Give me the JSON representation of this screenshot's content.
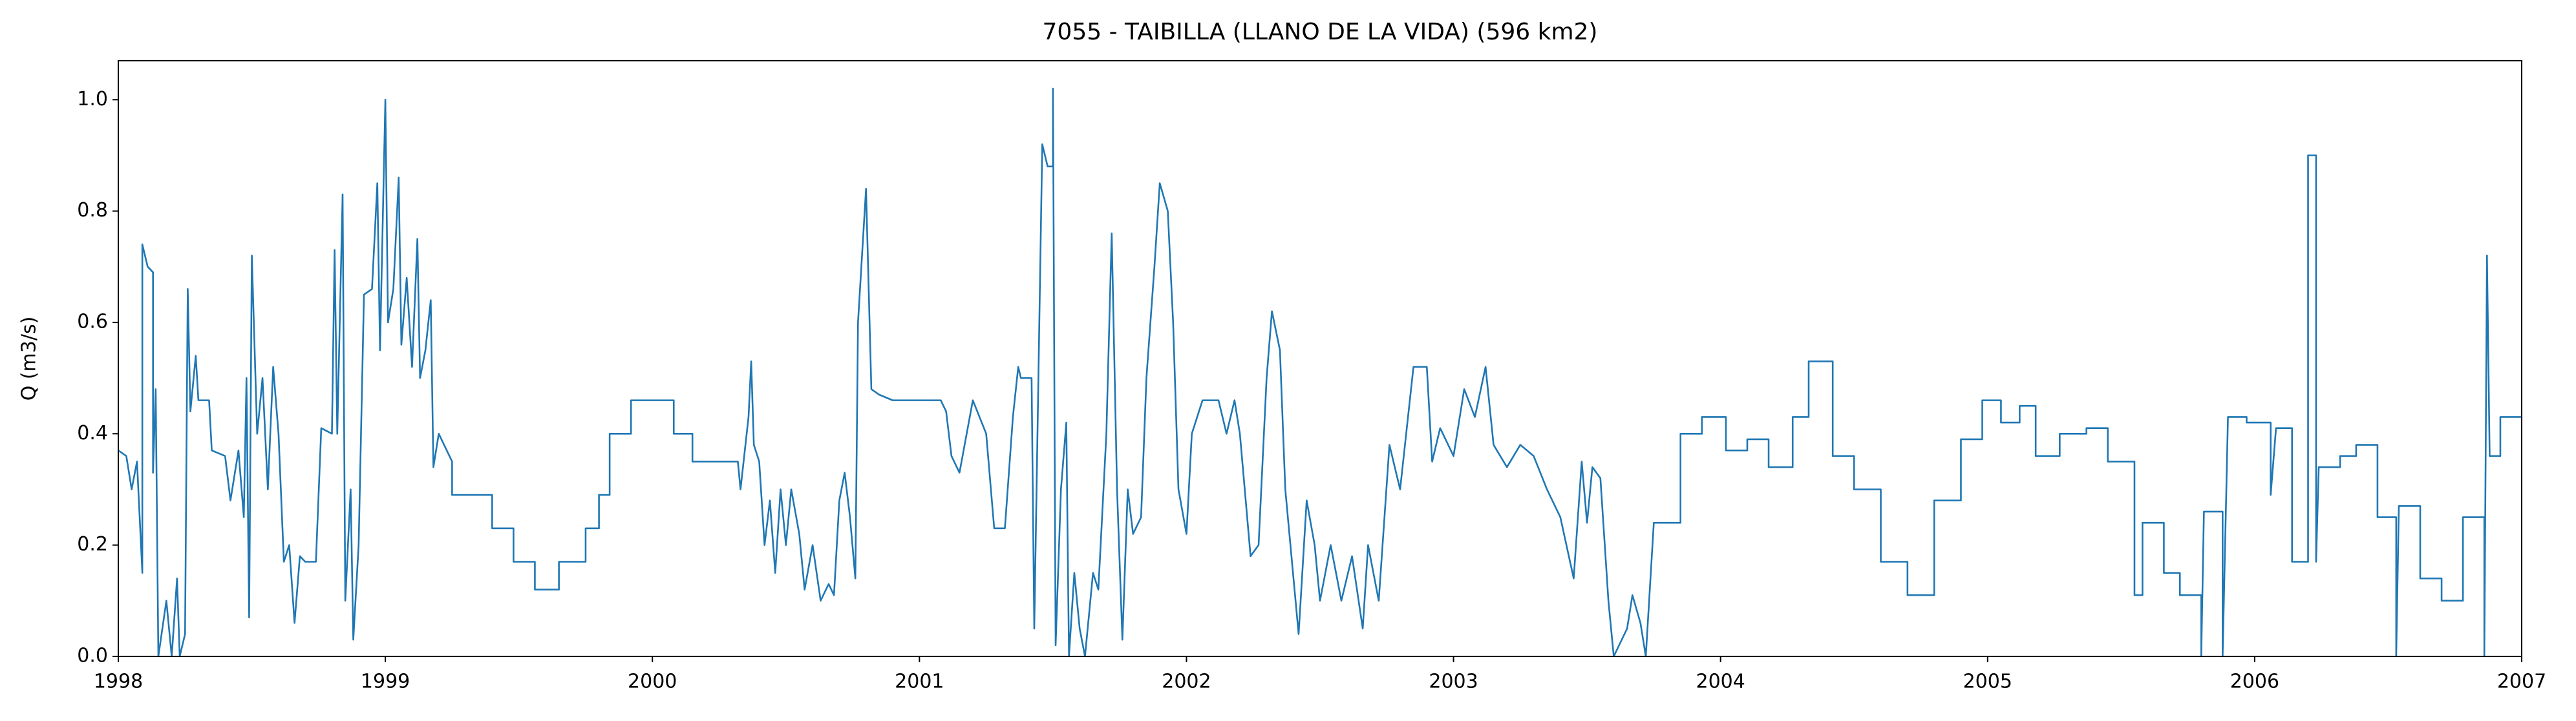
{
  "chart_data": {
    "type": "line",
    "title": "7055 - TAIBILLA (LLANO DE LA VIDA) (596 km2)",
    "ylabel": "Q (m3/s)",
    "xlim": [
      1998,
      2007
    ],
    "xticks": [
      1998,
      1999,
      2000,
      2001,
      2002,
      2003,
      2004,
      2005,
      2006,
      2007
    ],
    "ylim": [
      0,
      1.07
    ],
    "yticks": [
      {
        "value": 0,
        "label": "0.0"
      },
      0.2,
      0.4,
      0.6,
      0.8,
      {
        "value": 1,
        "label": "1.0"
      }
    ],
    "grid": false,
    "color": "#1f77b4",
    "x": [
      1998.0,
      1998.03,
      1998.05,
      1998.07,
      1998.09,
      1998.09,
      1998.11,
      1998.13,
      1998.13,
      1998.14,
      1998.15,
      1998.18,
      1998.2,
      1998.22,
      1998.23,
      1998.25,
      1998.26,
      1998.27,
      1998.29,
      1998.3,
      1998.34,
      1998.35,
      1998.4,
      1998.42,
      1998.45,
      1998.47,
      1998.48,
      1998.49,
      1998.5,
      1998.52,
      1998.54,
      1998.56,
      1998.58,
      1998.6,
      1998.62,
      1998.64,
      1998.66,
      1998.68,
      1998.7,
      1998.74,
      1998.76,
      1998.8,
      1998.81,
      1998.82,
      1998.84,
      1998.85,
      1998.87,
      1998.88,
      1998.9,
      1998.92,
      1998.95,
      1998.97,
      1998.98,
      1999.0,
      1999.01,
      1999.03,
      1999.05,
      1999.06,
      1999.08,
      1999.1,
      1999.12,
      1999.13,
      1999.15,
      1999.17,
      1999.18,
      1999.2,
      1999.25,
      1999.25,
      1999.4,
      1999.4,
      1999.48,
      1999.48,
      1999.56,
      1999.56,
      1999.65,
      1999.65,
      1999.75,
      1999.75,
      1999.8,
      1999.8,
      1999.84,
      1999.84,
      1999.92,
      1999.92,
      2000.08,
      2000.08,
      2000.15,
      2000.15,
      2000.32,
      2000.33,
      2000.36,
      2000.37,
      2000.38,
      2000.4,
      2000.42,
      2000.44,
      2000.46,
      2000.48,
      2000.5,
      2000.52,
      2000.55,
      2000.57,
      2000.6,
      2000.63,
      2000.66,
      2000.68,
      2000.7,
      2000.72,
      2000.74,
      2000.76,
      2000.77,
      2000.8,
      2000.82,
      2000.85,
      2000.9,
      2001.0,
      2001.08,
      2001.1,
      2001.12,
      2001.15,
      2001.2,
      2001.25,
      2001.28,
      2001.32,
      2001.35,
      2001.37,
      2001.38,
      2001.42,
      2001.43,
      2001.46,
      2001.48,
      2001.5,
      2001.5,
      2001.51,
      2001.53,
      2001.55,
      2001.56,
      2001.58,
      2001.6,
      2001.62,
      2001.65,
      2001.67,
      2001.7,
      2001.72,
      2001.74,
      2001.76,
      2001.78,
      2001.8,
      2001.83,
      2001.85,
      2001.88,
      2001.9,
      2001.93,
      2001.95,
      2001.97,
      2002.0,
      2002.02,
      2002.06,
      2002.12,
      2002.15,
      2002.18,
      2002.2,
      2002.24,
      2002.27,
      2002.3,
      2002.32,
      2002.35,
      2002.37,
      2002.42,
      2002.45,
      2002.48,
      2002.5,
      2002.54,
      2002.58,
      2002.62,
      2002.66,
      2002.68,
      2002.72,
      2002.76,
      2002.8,
      2002.85,
      2002.9,
      2002.92,
      2002.95,
      2003.0,
      2003.04,
      2003.08,
      2003.12,
      2003.15,
      2003.2,
      2003.25,
      2003.3,
      2003.35,
      2003.4,
      2003.45,
      2003.48,
      2003.5,
      2003.52,
      2003.55,
      2003.58,
      2003.6,
      2003.65,
      2003.67,
      2003.7,
      2003.72,
      2003.75,
      2003.85,
      2003.85,
      2003.93,
      2003.93,
      2004.02,
      2004.02,
      2004.1,
      2004.1,
      2004.18,
      2004.18,
      2004.27,
      2004.27,
      2004.33,
      2004.33,
      2004.42,
      2004.42,
      2004.5,
      2004.5,
      2004.6,
      2004.6,
      2004.7,
      2004.7,
      2004.8,
      2004.8,
      2004.9,
      2004.9,
      2004.98,
      2004.98,
      2005.05,
      2005.05,
      2005.12,
      2005.12,
      2005.18,
      2005.18,
      2005.27,
      2005.27,
      2005.37,
      2005.37,
      2005.45,
      2005.45,
      2005.55,
      2005.55,
      2005.58,
      2005.58,
      2005.66,
      2005.66,
      2005.72,
      2005.72,
      2005.8,
      2005.8,
      2005.81,
      2005.88,
      2005.88,
      2005.9,
      2005.97,
      2005.97,
      2006.06,
      2006.06,
      2006.08,
      2006.14,
      2006.14,
      2006.2,
      2006.2,
      2006.23,
      2006.23,
      2006.24,
      2006.32,
      2006.32,
      2006.38,
      2006.38,
      2006.46,
      2006.46,
      2006.53,
      2006.53,
      2006.54,
      2006.62,
      2006.62,
      2006.7,
      2006.7,
      2006.78,
      2006.78,
      2006.86,
      2006.86,
      2006.87,
      2006.88,
      2006.92,
      2006.92,
      2007.0
    ],
    "values": [
      0.37,
      0.36,
      0.3,
      0.35,
      0.15,
      0.74,
      0.7,
      0.69,
      0.33,
      0.48,
      0.0,
      0.1,
      0.0,
      0.14,
      0.0,
      0.04,
      0.66,
      0.44,
      0.54,
      0.46,
      0.46,
      0.37,
      0.36,
      0.28,
      0.37,
      0.25,
      0.5,
      0.07,
      0.72,
      0.4,
      0.5,
      0.3,
      0.52,
      0.4,
      0.17,
      0.2,
      0.06,
      0.18,
      0.17,
      0.17,
      0.41,
      0.4,
      0.73,
      0.4,
      0.83,
      0.1,
      0.3,
      0.03,
      0.2,
      0.65,
      0.66,
      0.85,
      0.55,
      1.0,
      0.6,
      0.66,
      0.86,
      0.56,
      0.68,
      0.52,
      0.75,
      0.5,
      0.55,
      0.64,
      0.34,
      0.4,
      0.35,
      0.29,
      0.29,
      0.23,
      0.23,
      0.17,
      0.17,
      0.12,
      0.12,
      0.17,
      0.17,
      0.23,
      0.23,
      0.29,
      0.29,
      0.4,
      0.4,
      0.46,
      0.46,
      0.4,
      0.4,
      0.35,
      0.35,
      0.3,
      0.43,
      0.53,
      0.38,
      0.35,
      0.2,
      0.28,
      0.15,
      0.3,
      0.2,
      0.3,
      0.22,
      0.12,
      0.2,
      0.1,
      0.13,
      0.11,
      0.28,
      0.33,
      0.25,
      0.14,
      0.6,
      0.84,
      0.48,
      0.47,
      0.46,
      0.46,
      0.46,
      0.44,
      0.36,
      0.33,
      0.46,
      0.4,
      0.23,
      0.23,
      0.43,
      0.52,
      0.5,
      0.5,
      0.05,
      0.92,
      0.88,
      0.88,
      1.02,
      0.02,
      0.3,
      0.42,
      0.0,
      0.15,
      0.05,
      0.0,
      0.15,
      0.12,
      0.4,
      0.76,
      0.3,
      0.03,
      0.3,
      0.22,
      0.25,
      0.5,
      0.7,
      0.85,
      0.8,
      0.6,
      0.3,
      0.22,
      0.4,
      0.46,
      0.46,
      0.4,
      0.46,
      0.4,
      0.18,
      0.2,
      0.5,
      0.62,
      0.55,
      0.3,
      0.04,
      0.28,
      0.2,
      0.1,
      0.2,
      0.1,
      0.18,
      0.05,
      0.2,
      0.1,
      0.38,
      0.3,
      0.52,
      0.52,
      0.35,
      0.41,
      0.36,
      0.48,
      0.43,
      0.52,
      0.38,
      0.34,
      0.38,
      0.36,
      0.3,
      0.25,
      0.14,
      0.35,
      0.24,
      0.34,
      0.32,
      0.1,
      0.0,
      0.05,
      0.11,
      0.06,
      0.0,
      0.24,
      0.24,
      0.4,
      0.4,
      0.43,
      0.43,
      0.37,
      0.37,
      0.39,
      0.39,
      0.34,
      0.34,
      0.43,
      0.43,
      0.53,
      0.53,
      0.36,
      0.36,
      0.3,
      0.3,
      0.17,
      0.17,
      0.11,
      0.11,
      0.28,
      0.28,
      0.39,
      0.39,
      0.46,
      0.46,
      0.42,
      0.42,
      0.45,
      0.45,
      0.36,
      0.36,
      0.4,
      0.4,
      0.41,
      0.41,
      0.35,
      0.35,
      0.11,
      0.11,
      0.24,
      0.24,
      0.15,
      0.15,
      0.11,
      0.11,
      0.0,
      0.26,
      0.26,
      0.0,
      0.43,
      0.43,
      0.42,
      0.42,
      0.29,
      0.41,
      0.41,
      0.17,
      0.17,
      0.9,
      0.9,
      0.17,
      0.34,
      0.34,
      0.36,
      0.36,
      0.38,
      0.38,
      0.25,
      0.25,
      0.0,
      0.27,
      0.27,
      0.14,
      0.14,
      0.1,
      0.1,
      0.25,
      0.25,
      0.0,
      0.72,
      0.36,
      0.36,
      0.43,
      0.43
    ]
  }
}
